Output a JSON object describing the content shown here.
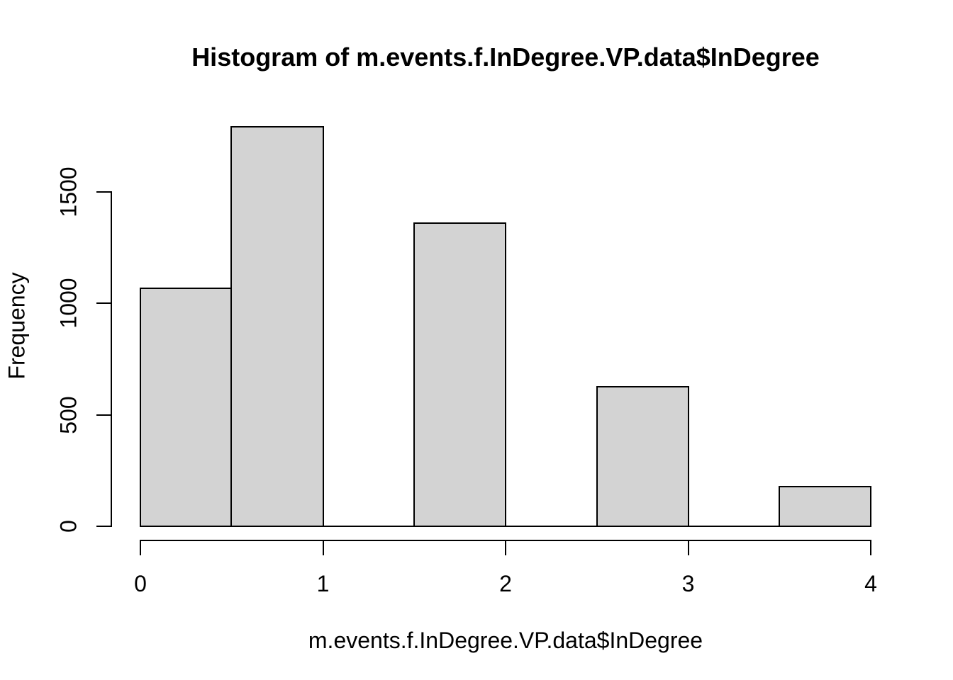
{
  "figure": {
    "background": "#ffffff"
  },
  "chart_data": {
    "type": "bar",
    "subtype": "histogram",
    "title": "Histogram of m.events.f.InDegree.VP.data$InDegree",
    "xlabel": "m.events.f.InDegree.VP.data$InDegree",
    "ylabel": "Frequency",
    "breaks": [
      0,
      0.5,
      1,
      1.5,
      2,
      2.5,
      3,
      3.5,
      4
    ],
    "counts": [
      1068,
      1792,
      0,
      1360,
      0,
      626,
      0,
      178
    ],
    "x_ticks": [
      "0",
      "1",
      "2",
      "3",
      "4"
    ],
    "x_tick_values": [
      0,
      1,
      2,
      3,
      4
    ],
    "y_ticks": [
      "0",
      "500",
      "1000",
      "1500"
    ],
    "y_tick_values": [
      0,
      500,
      1000,
      1500
    ],
    "xlim": [
      0,
      4
    ],
    "ylim": [
      0,
      1500
    ],
    "grid": false,
    "legend": false,
    "bar_fill": "#d3d3d3",
    "bar_stroke": "#000000",
    "axis_color": "#000000",
    "text_color": "#000000"
  }
}
